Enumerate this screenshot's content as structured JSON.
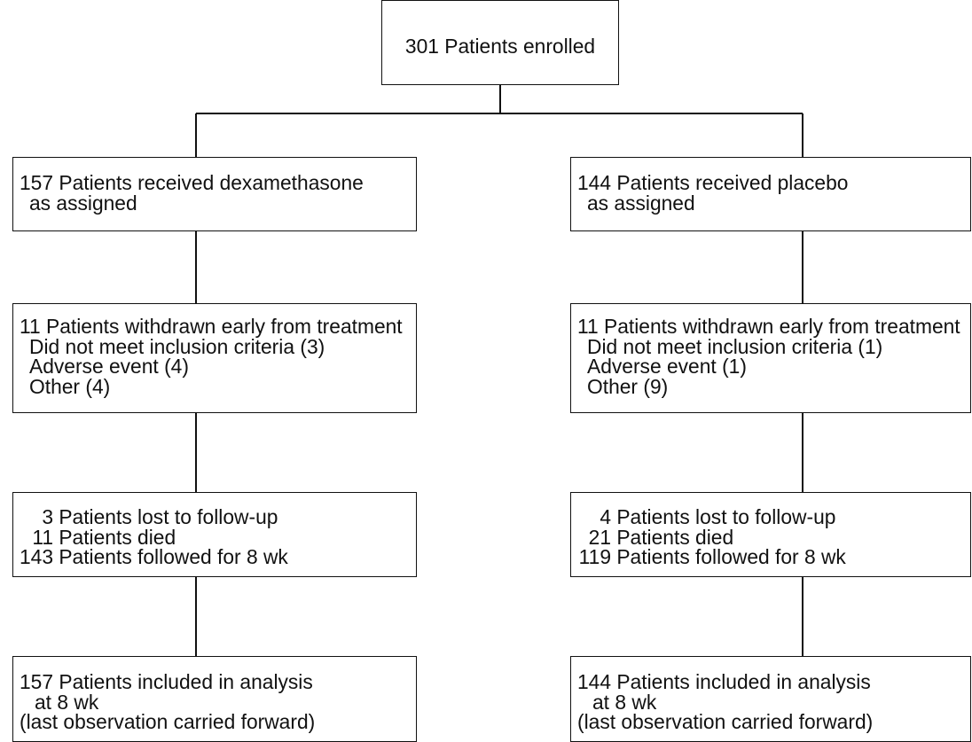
{
  "colors": {
    "line": "#111111",
    "text": "#111111",
    "background": "#ffffff"
  },
  "enrolled": {
    "label": "301 Patients enrolled"
  },
  "arms": [
    {
      "assigned": {
        "line1": "157 Patients received dexamethasone",
        "line2": "as assigned"
      },
      "withdrawn": {
        "title": "11 Patients withdrawn early from treatment",
        "reasons": [
          "Did not meet inclusion criteria (3)",
          "Adverse event (4)",
          "Other (4)"
        ]
      },
      "follow_up": [
        {
          "count": "3",
          "text": "Patients lost to follow-up"
        },
        {
          "count": "11",
          "text": "Patients died"
        },
        {
          "count": "143",
          "text": "Patients followed for 8 wk"
        }
      ],
      "analysis": {
        "line1": "157 Patients included in analysis",
        "line2": "at 8 wk",
        "line3": "(last observation carried forward)"
      }
    },
    {
      "assigned": {
        "line1": "144 Patients received placebo",
        "line2": "as assigned"
      },
      "withdrawn": {
        "title": "11 Patients withdrawn early from treatment",
        "reasons": [
          "Did not meet inclusion criteria (1)",
          "Adverse event (1)",
          "Other (9)"
        ]
      },
      "follow_up": [
        {
          "count": "4",
          "text": "Patients lost to follow-up"
        },
        {
          "count": "21",
          "text": "Patients died"
        },
        {
          "count": "119",
          "text": "Patients followed for 8 wk"
        }
      ],
      "analysis": {
        "line1": "144 Patients included in analysis",
        "line2": "at 8 wk",
        "line3": "(last observation carried forward)"
      }
    }
  ]
}
